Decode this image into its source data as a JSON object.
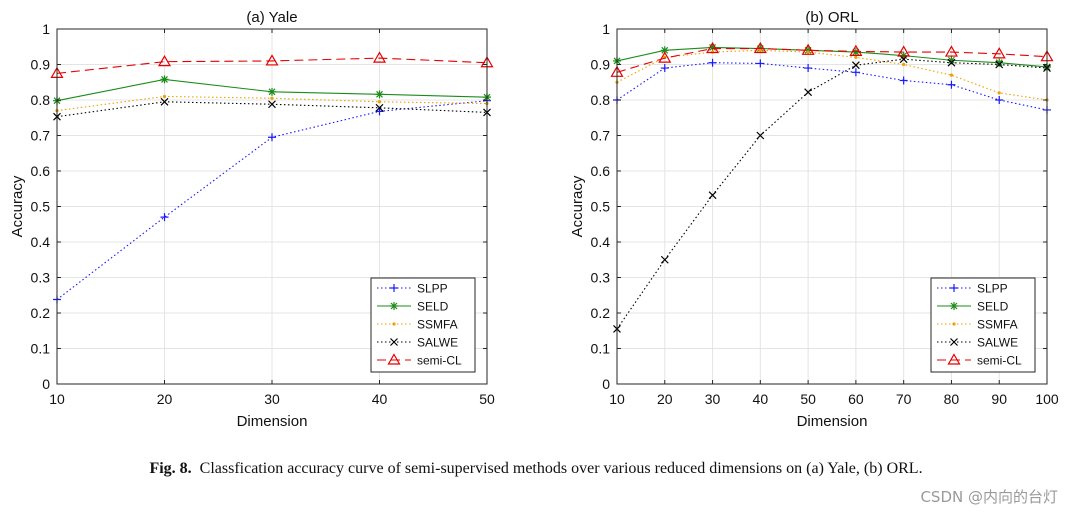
{
  "caption": {
    "label": "Fig. 8.",
    "text": "Classfication accuracy curve of semi-supervised methods over various reduced dimensions on (a) Yale, (b) ORL."
  },
  "watermark": "CSDN @内向的台灯",
  "series_styles": [
    {
      "name": "SLPP",
      "color": "#1a1aff",
      "dash": "1.5,2.5",
      "marker": "plus"
    },
    {
      "name": "SELD",
      "color": "#1a8c1a",
      "dash": "",
      "marker": "star"
    },
    {
      "name": "SSMFA",
      "color": "#f0a000",
      "dash": "1.5,2.5",
      "marker": "dot"
    },
    {
      "name": "SALWE",
      "color": "#000000",
      "dash": "1.5,2.5",
      "marker": "x"
    },
    {
      "name": "semi-CL",
      "color": "#e60000",
      "dash": "9,5",
      "marker": "triangle"
    }
  ],
  "chart_data": [
    {
      "type": "line",
      "title": "(a) Yale",
      "xlabel": "Dimension",
      "ylabel": "Accuracy",
      "x": [
        10,
        20,
        30,
        40,
        50
      ],
      "xticks": [
        "10",
        "20",
        "30",
        "40",
        "50"
      ],
      "xlim": [
        10,
        50
      ],
      "ylim": [
        0,
        1
      ],
      "yticks": [
        "0",
        "0.1",
        "0.2",
        "0.3",
        "0.4",
        "0.5",
        "0.6",
        "0.7",
        "0.8",
        "0.9",
        "1"
      ],
      "grid": true,
      "legend_position": "bottom-right",
      "series": [
        {
          "name": "SLPP",
          "values": [
            0.238,
            0.47,
            0.695,
            0.768,
            0.798
          ]
        },
        {
          "name": "SELD",
          "values": [
            0.798,
            0.858,
            0.823,
            0.816,
            0.808
          ]
        },
        {
          "name": "SSMFA",
          "values": [
            0.77,
            0.81,
            0.805,
            0.795,
            0.79
          ]
        },
        {
          "name": "SALWE",
          "values": [
            0.753,
            0.795,
            0.788,
            0.778,
            0.765
          ]
        },
        {
          "name": "semi-CL",
          "values": [
            0.875,
            0.908,
            0.91,
            0.918,
            0.905
          ]
        }
      ]
    },
    {
      "type": "line",
      "title": "(b) ORL",
      "xlabel": "Dimension",
      "ylabel": "Accuracy",
      "x": [
        10,
        20,
        30,
        40,
        50,
        60,
        70,
        80,
        90,
        100
      ],
      "xticks": [
        "10",
        "20",
        "30",
        "40",
        "50",
        "60",
        "70",
        "80",
        "90",
        "100"
      ],
      "xlim": [
        10,
        100
      ],
      "ylim": [
        0,
        1
      ],
      "yticks": [
        "0",
        "0.1",
        "0.2",
        "0.3",
        "0.4",
        "0.5",
        "0.6",
        "0.7",
        "0.8",
        "0.9",
        "1"
      ],
      "grid": true,
      "legend_position": "bottom-right",
      "series": [
        {
          "name": "SLPP",
          "values": [
            0.8,
            0.89,
            0.905,
            0.903,
            0.89,
            0.878,
            0.855,
            0.843,
            0.8,
            0.772
          ]
        },
        {
          "name": "SELD",
          "values": [
            0.91,
            0.94,
            0.948,
            0.945,
            0.94,
            0.935,
            0.925,
            0.912,
            0.905,
            0.893
          ]
        },
        {
          "name": "SSMFA",
          "values": [
            0.85,
            0.92,
            0.935,
            0.94,
            0.935,
            0.92,
            0.9,
            0.87,
            0.82,
            0.8
          ]
        },
        {
          "name": "SALWE",
          "values": [
            0.155,
            0.35,
            0.532,
            0.7,
            0.822,
            0.898,
            0.915,
            0.905,
            0.9,
            0.89
          ]
        },
        {
          "name": "semi-CL",
          "values": [
            0.878,
            0.918,
            0.945,
            0.945,
            0.94,
            0.937,
            0.935,
            0.935,
            0.93,
            0.922
          ]
        }
      ]
    }
  ]
}
